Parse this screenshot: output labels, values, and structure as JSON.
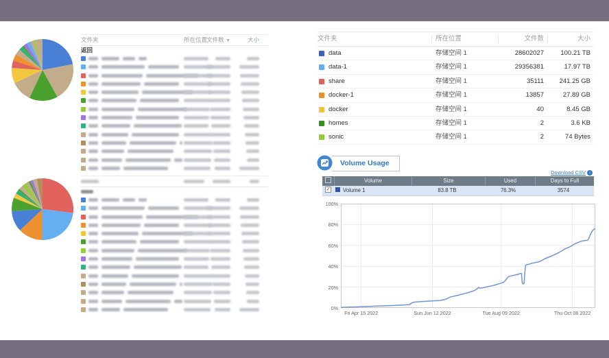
{
  "frame_color": "#746e7e",
  "left": {
    "table1": {
      "headers": {
        "folder": "文件夹",
        "location": "所在位置",
        "files": "文件数",
        "size": "大小"
      },
      "back_label": "返回",
      "row_icon_colors": [
        "#4a7fd6",
        "#65aef2",
        "#e2625e",
        "#ee9231",
        "#f2c63e",
        "#4ba12e",
        "#98cb42",
        "#a173e6",
        "#34b27b",
        "#c3ac8a",
        "#b18e60",
        "#c3ac8a",
        "#c3ac8a",
        "#c3ac8a"
      ]
    },
    "table2": {
      "header_blurred": true,
      "back_blurred": true,
      "row_icon_colors": [
        "#4a7fd6",
        "#65aef2",
        "#e2625e",
        "#ee9231",
        "#f2c63e",
        "#4ba12e",
        "#98cb42",
        "#a173e6",
        "#34b27b",
        "#c3ac8a",
        "#b18e60",
        "#c3ac8a",
        "#c3ac8a",
        "#c3ac8a"
      ]
    }
  },
  "right": {
    "folder_table": {
      "headers": {
        "folder": "文件夹",
        "location": "所在位置",
        "files": "文件数",
        "size": "大小"
      },
      "rows": [
        {
          "name": "data",
          "icon_color": "#3b62c4",
          "location": "存储空间 1",
          "files": "28602027",
          "size": "100.21 TB"
        },
        {
          "name": "data-1",
          "icon_color": "#63aef2",
          "location": "存储空间 1",
          "files": "29356381",
          "size": "17.97 TB"
        },
        {
          "name": "share",
          "icon_color": "#e0605c",
          "location": "存储空间 1",
          "files": "35111",
          "size": "241.25 GB"
        },
        {
          "name": "docker-1",
          "icon_color": "#ee8f2d",
          "location": "存储空间 1",
          "files": "13857",
          "size": "27.89 GB"
        },
        {
          "name": "docker",
          "icon_color": "#eec33d",
          "location": "存储空间 1",
          "files": "40",
          "size": "8.45 GB"
        },
        {
          "name": "homes",
          "icon_color": "#389020",
          "location": "存储空间 1",
          "files": "2",
          "size": "3.6 KB"
        },
        {
          "name": "sonic",
          "icon_color": "#93c940",
          "location": "存储空间 1",
          "files": "2",
          "size": "74 Bytes"
        }
      ]
    },
    "volume_usage": {
      "title": "Volume Usage",
      "download_label": "Download CSV",
      "table": {
        "headers": {
          "volume": "Volume",
          "size": "Size",
          "used": "Used",
          "days": "Days to Full"
        },
        "rows": [
          {
            "name": "Volume 1",
            "icon_color": "#2d56ad",
            "size": "83.8 TB",
            "used": "76.3%",
            "days_to_full": "3574",
            "checked": true
          }
        ]
      }
    }
  },
  "chart_data": [
    {
      "id": "folders-pie-top",
      "type": "pie",
      "values": [
        22,
        20,
        15,
        11,
        8,
        4,
        3.5,
        3,
        2,
        1,
        2,
        2,
        1.5,
        1,
        4
      ],
      "colors": [
        "#4a7fd6",
        "#c3ac8a",
        "#4ba12e",
        "#c3ac8a",
        "#f2c63e",
        "#e2625e",
        "#ee9231",
        "#c3ac8a",
        "#34b27b",
        "#4ba12e",
        "#a173e6",
        "#65aef2",
        "#c3ac8a",
        "#98cb42",
        "#c3ac8a"
      ]
    },
    {
      "id": "folders-pie-bottom",
      "type": "pie",
      "values": [
        27,
        23,
        13,
        11,
        7,
        2.5,
        2,
        1,
        2,
        2.5,
        1.5,
        1,
        1.5,
        2,
        3
      ],
      "colors": [
        "#e2625e",
        "#65aef2",
        "#ee9231",
        "#4a7fd6",
        "#4ba12e",
        "#f2c63e",
        "#34b27b",
        "#4ba12e",
        "#c3ac8a",
        "#98cb42",
        "#c3ac8a",
        "#4ba12e",
        "#a173e6",
        "#c3ac8a",
        "#b18e60"
      ]
    },
    {
      "id": "volume-usage-line",
      "type": "line",
      "ylim": [
        0,
        100
      ],
      "y_ticks": [
        "0%",
        "20%",
        "40%",
        "60%",
        "80%",
        "100%"
      ],
      "x_ticks": [
        {
          "label": "Fri Apr 15 2022",
          "pos": 0.08
        },
        {
          "label": "Sun Jun 12 2022",
          "pos": 0.36
        },
        {
          "label": "Tue Aug 09 2022",
          "pos": 0.63
        },
        {
          "label": "Thu Oct 06 2022",
          "pos": 0.91
        }
      ],
      "grid": true,
      "series": [
        {
          "name": "Volume 1",
          "color": "#7096d4",
          "points": [
            [
              0,
              0.5
            ],
            [
              0.03,
              0.8
            ],
            [
              0.06,
              1
            ],
            [
              0.09,
              1.3
            ],
            [
              0.12,
              1.6
            ],
            [
              0.15,
              1.9
            ],
            [
              0.18,
              2.1
            ],
            [
              0.21,
              2.4
            ],
            [
              0.24,
              2.7
            ],
            [
              0.26,
              3
            ],
            [
              0.27,
              3.2
            ],
            [
              0.28,
              5
            ],
            [
              0.29,
              5.6
            ],
            [
              0.31,
              6
            ],
            [
              0.33,
              6.3
            ],
            [
              0.35,
              6.6
            ],
            [
              0.37,
              6.9
            ],
            [
              0.39,
              7.2
            ],
            [
              0.4,
              7.6
            ],
            [
              0.41,
              8.2
            ],
            [
              0.42,
              9.2
            ],
            [
              0.43,
              10.5
            ],
            [
              0.44,
              11
            ],
            [
              0.45,
              11.6
            ],
            [
              0.46,
              12.1
            ],
            [
              0.47,
              12.8
            ],
            [
              0.48,
              13.4
            ],
            [
              0.49,
              14
            ],
            [
              0.5,
              14.6
            ],
            [
              0.51,
              15.5
            ],
            [
              0.52,
              16.2
            ],
            [
              0.53,
              17.5
            ],
            [
              0.535,
              18.2
            ],
            [
              0.54,
              19.6
            ],
            [
              0.545,
              19
            ],
            [
              0.555,
              19.2
            ],
            [
              0.57,
              20
            ],
            [
              0.58,
              20.6
            ],
            [
              0.59,
              21
            ],
            [
              0.6,
              21.6
            ],
            [
              0.61,
              22.3
            ],
            [
              0.62,
              23
            ],
            [
              0.63,
              23.8
            ],
            [
              0.64,
              24.6
            ],
            [
              0.645,
              26
            ],
            [
              0.65,
              27.5
            ],
            [
              0.655,
              29
            ],
            [
              0.66,
              30.2
            ],
            [
              0.67,
              30.8
            ],
            [
              0.68,
              31.3
            ],
            [
              0.69,
              31.9
            ],
            [
              0.7,
              32.5
            ],
            [
              0.705,
              33
            ],
            [
              0.71,
              33.1
            ],
            [
              0.713,
              24
            ],
            [
              0.716,
              23
            ],
            [
              0.72,
              23.6
            ],
            [
              0.723,
              33
            ],
            [
              0.726,
              41
            ],
            [
              0.73,
              41.4
            ],
            [
              0.74,
              42
            ],
            [
              0.75,
              42.8
            ],
            [
              0.76,
              43.3
            ],
            [
              0.77,
              43.8
            ],
            [
              0.78,
              44.4
            ],
            [
              0.79,
              45.5
            ],
            [
              0.8,
              47
            ],
            [
              0.81,
              48
            ],
            [
              0.82,
              49
            ],
            [
              0.83,
              50
            ],
            [
              0.84,
              51.2
            ],
            [
              0.85,
              52.2
            ],
            [
              0.86,
              53.6
            ],
            [
              0.87,
              55
            ],
            [
              0.88,
              56.5
            ],
            [
              0.89,
              57.6
            ],
            [
              0.9,
              58.6
            ],
            [
              0.91,
              60
            ],
            [
              0.92,
              61.5
            ],
            [
              0.93,
              62.6
            ],
            [
              0.94,
              63.6
            ],
            [
              0.95,
              64.3
            ],
            [
              0.96,
              64.6
            ],
            [
              0.97,
              65
            ],
            [
              0.975,
              67
            ],
            [
              0.98,
              70
            ],
            [
              0.985,
              72.5
            ],
            [
              0.99,
              74.5
            ],
            [
              1,
              76.3
            ]
          ]
        }
      ]
    }
  ]
}
